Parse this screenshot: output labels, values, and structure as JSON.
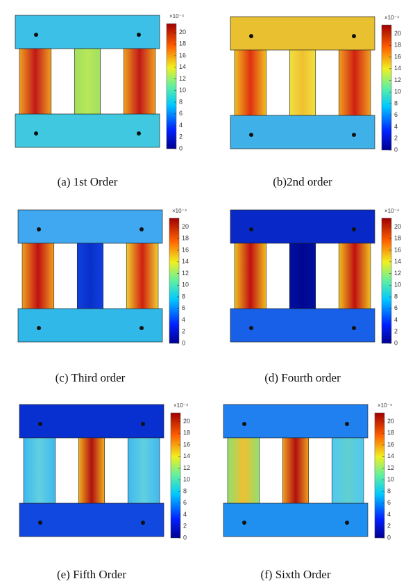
{
  "panels": [
    {
      "caption": "(a) 1st Order",
      "colorbar": {
        "exponent": "×10⁻⁴",
        "lim": [
          0,
          21.5
        ],
        "ticks": [
          0,
          2,
          4,
          6,
          8,
          10,
          12,
          14,
          16,
          18,
          20
        ]
      }
    },
    {
      "caption": "(b)2nd order",
      "colorbar": {
        "exponent": "×10⁻⁴",
        "lim": [
          0,
          21.5
        ],
        "ticks": [
          0,
          2,
          4,
          6,
          8,
          10,
          12,
          14,
          16,
          18,
          20
        ]
      }
    },
    {
      "caption": "(c) Third order",
      "colorbar": {
        "exponent": "×10⁻⁴",
        "lim": [
          0,
          21.5
        ],
        "ticks": [
          0,
          2,
          4,
          6,
          8,
          10,
          12,
          14,
          16,
          18,
          20
        ]
      }
    },
    {
      "caption": "(d) Fourth order",
      "colorbar": {
        "exponent": "×10⁻⁴",
        "lim": [
          0,
          21.5
        ],
        "ticks": [
          0,
          2,
          4,
          6,
          8,
          10,
          12,
          14,
          16,
          18,
          20
        ]
      }
    },
    {
      "caption": "(e) Fifth Order",
      "colorbar": {
        "exponent": "×10⁻⁴",
        "lim": [
          0,
          21.5
        ],
        "ticks": [
          0,
          2,
          4,
          6,
          8,
          10,
          12,
          14,
          16,
          18,
          20
        ]
      }
    },
    {
      "caption": "(f) Sixth Order",
      "colorbar": {
        "exponent": "×10⁻⁴",
        "lim": [
          0,
          21.5
        ],
        "ticks": [
          0,
          2,
          4,
          6,
          8,
          10,
          12,
          14,
          16,
          18,
          20
        ]
      }
    }
  ]
}
